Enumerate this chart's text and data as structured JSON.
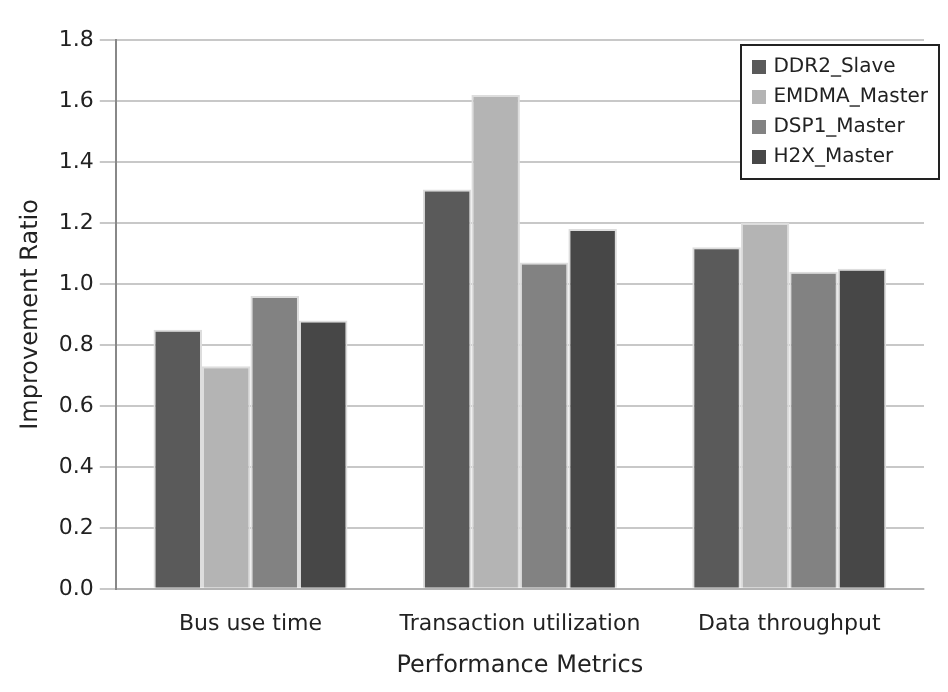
{
  "chart_data": {
    "type": "bar",
    "xlabel": "Performance Metrics",
    "ylabel": "Improvement Ratio",
    "categories": [
      "Bus use time",
      "Transaction utilization",
      "Data throughput"
    ],
    "series": [
      {
        "name": "DDR2_Slave",
        "color": "#5a5a5a",
        "values": [
          0.85,
          1.31,
          1.12
        ]
      },
      {
        "name": "EMDMA_Master",
        "color": "#b4b4b4",
        "values": [
          0.73,
          1.62,
          1.2
        ]
      },
      {
        "name": "DSP1_Master",
        "color": "#828282",
        "values": [
          0.96,
          1.07,
          1.04
        ]
      },
      {
        "name": "H2X_Master",
        "color": "#474747",
        "values": [
          0.88,
          1.18,
          1.05
        ]
      }
    ],
    "ylim": [
      0,
      1.8
    ],
    "yticks": [
      {
        "value": 0,
        "label": "0.0"
      },
      0.2,
      0.4,
      0.6,
      0.8,
      {
        "value": 1,
        "label": "1.0"
      },
      1.2,
      1.4,
      1.6,
      1.8
    ],
    "grid": "y",
    "legend": "top right"
  }
}
